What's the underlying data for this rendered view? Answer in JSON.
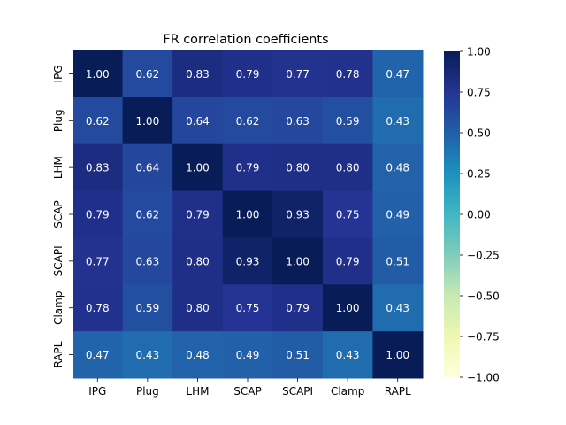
{
  "chart_data": {
    "type": "heatmap",
    "title": "FR correlation coefficients",
    "row_labels": [
      "IPG",
      "Plug",
      "LHM",
      "SCAP",
      "SCAPI",
      "Clamp",
      "RAPL"
    ],
    "col_labels": [
      "IPG",
      "Plug",
      "LHM",
      "SCAP",
      "SCAPI",
      "Clamp",
      "RAPL"
    ],
    "values": [
      [
        1.0,
        0.62,
        0.83,
        0.79,
        0.77,
        0.78,
        0.47
      ],
      [
        0.62,
        1.0,
        0.64,
        0.62,
        0.63,
        0.59,
        0.43
      ],
      [
        0.83,
        0.64,
        1.0,
        0.79,
        0.8,
        0.8,
        0.48
      ],
      [
        0.79,
        0.62,
        0.79,
        1.0,
        0.93,
        0.75,
        0.49
      ],
      [
        0.77,
        0.63,
        0.8,
        0.93,
        1.0,
        0.79,
        0.51
      ],
      [
        0.78,
        0.59,
        0.8,
        0.75,
        0.79,
        1.0,
        0.43
      ],
      [
        0.47,
        0.43,
        0.48,
        0.49,
        0.51,
        0.43,
        1.0
      ]
    ],
    "value_format_decimals": 2,
    "colormap": "YlGnBu",
    "colormap_stops": [
      "#ffffd9",
      "#edf8b1",
      "#c7e9b4",
      "#7fcdbb",
      "#41b6c4",
      "#1d91c0",
      "#225ea8",
      "#253494",
      "#081d58"
    ],
    "vmin": -1.0,
    "vmax": 1.0,
    "colorbar_ticks": [
      "1.00",
      "0.75",
      "0.50",
      "0.25",
      "0.00",
      "−0.25",
      "−0.50",
      "−0.75",
      "−1.00"
    ],
    "colorbar_tick_values": [
      1.0,
      0.75,
      0.5,
      0.25,
      0.0,
      -0.25,
      -0.5,
      -0.75,
      -1.0
    ]
  }
}
